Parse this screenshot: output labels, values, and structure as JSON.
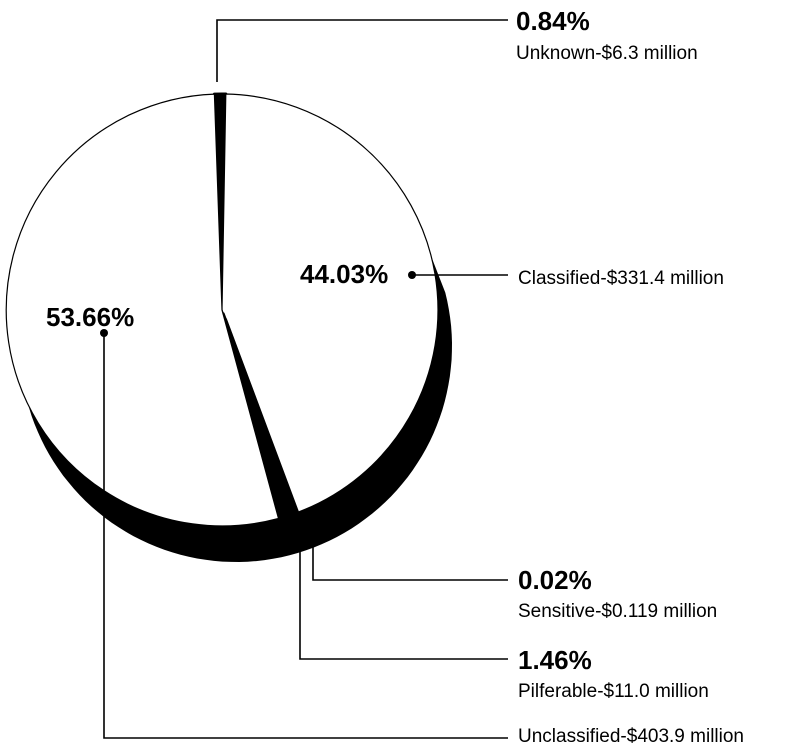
{
  "chart_data": {
    "type": "pie",
    "style": "3d",
    "slices": [
      {
        "category": "Unknown",
        "amount": "$6.3 million",
        "value_million": 6.3,
        "percent": 0.84,
        "percent_label": "0.84%",
        "label": "Unknown-$6.3 million",
        "exploded": true
      },
      {
        "category": "Classified",
        "amount": "$331.4 million",
        "value_million": 331.4,
        "percent": 44.03,
        "percent_label": "44.03%",
        "label": "Classified-$331.4 million",
        "exploded": false
      },
      {
        "category": "Sensitive",
        "amount": "$0.119 million",
        "value_million": 0.119,
        "percent": 0.02,
        "percent_label": "0.02%",
        "label": "Sensitive-$0.119 million",
        "exploded": true
      },
      {
        "category": "Pilferable",
        "amount": "$11.0 million",
        "value_million": 11.0,
        "percent": 1.46,
        "percent_label": "1.46%",
        "label": "Pilferable-$11.0 million",
        "exploded": true
      },
      {
        "category": "Unclassified",
        "amount": "$403.9 million",
        "value_million": 403.9,
        "percent": 53.66,
        "percent_label": "53.66%",
        "label": "Unclassified-$403.9 million",
        "exploded": false
      }
    ],
    "colors": {
      "face": "#ffffff",
      "side": "#000000",
      "outline": "#000000"
    }
  }
}
